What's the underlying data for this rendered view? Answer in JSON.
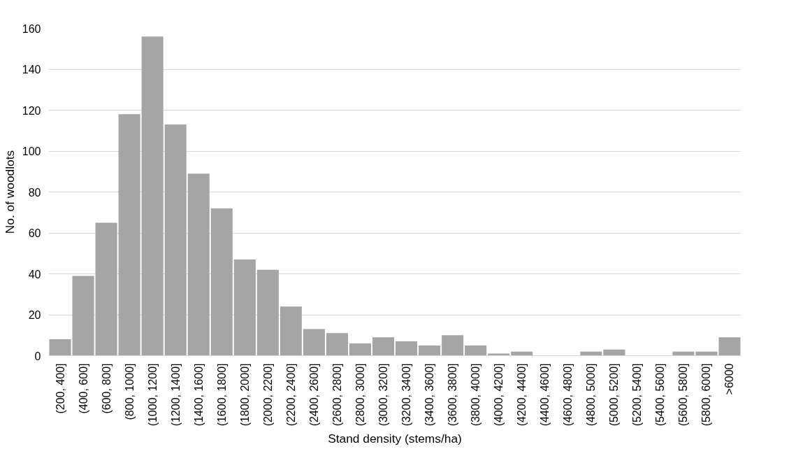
{
  "chart_data": {
    "type": "bar",
    "xlabel": "Stand density (stems/ha)",
    "ylabel": "No. of woodlots",
    "categories": [
      "(200, 400]",
      "(400, 600]",
      "(600, 800]",
      "(800, 1000]",
      "(1000, 1200]",
      "(1200, 1400]",
      "(1400, 1600]",
      "(1600, 1800]",
      "(1800, 2000]",
      "(2000, 2200]",
      "(2200, 2400]",
      "(2400, 2600]",
      "(2600, 2800]",
      "(2800, 3000]",
      "(3000, 3200]",
      "(3200, 3400]",
      "(3400, 3600]",
      "(3600, 3800]",
      "(3800, 4000]",
      "(4000, 4200]",
      "(4200, 4400]",
      "(4400, 4600]",
      "(4600, 4800]",
      "(4800, 5000]",
      "(5000, 5200]",
      "(5200, 5400]",
      "(5400, 5600]",
      "(5600, 5800]",
      "(5800, 6000]",
      ">6000"
    ],
    "values": [
      8,
      39,
      65,
      118,
      156,
      113,
      89,
      72,
      47,
      42,
      24,
      13,
      11,
      6,
      9,
      7,
      5,
      10,
      5,
      1,
      2,
      0,
      0,
      2,
      3,
      0,
      0,
      2,
      2,
      9
    ],
    "color": "#a5a5a5",
    "ylim": [
      0,
      160
    ],
    "yticks": [
      0,
      20,
      40,
      60,
      80,
      100,
      120,
      140,
      160
    ],
    "grid": "y"
  }
}
